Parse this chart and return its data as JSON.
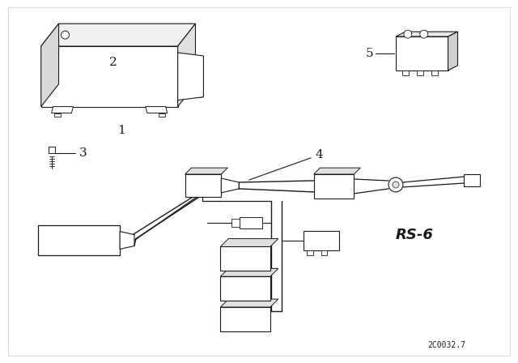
{
  "background_color": "#ffffff",
  "line_color": "#1a1a1a",
  "diagram_id": "2C0032.7",
  "rs_label": "RS-6",
  "figsize": [
    6.4,
    4.48
  ],
  "dpi": 100,
  "border_color": "#cccccc"
}
